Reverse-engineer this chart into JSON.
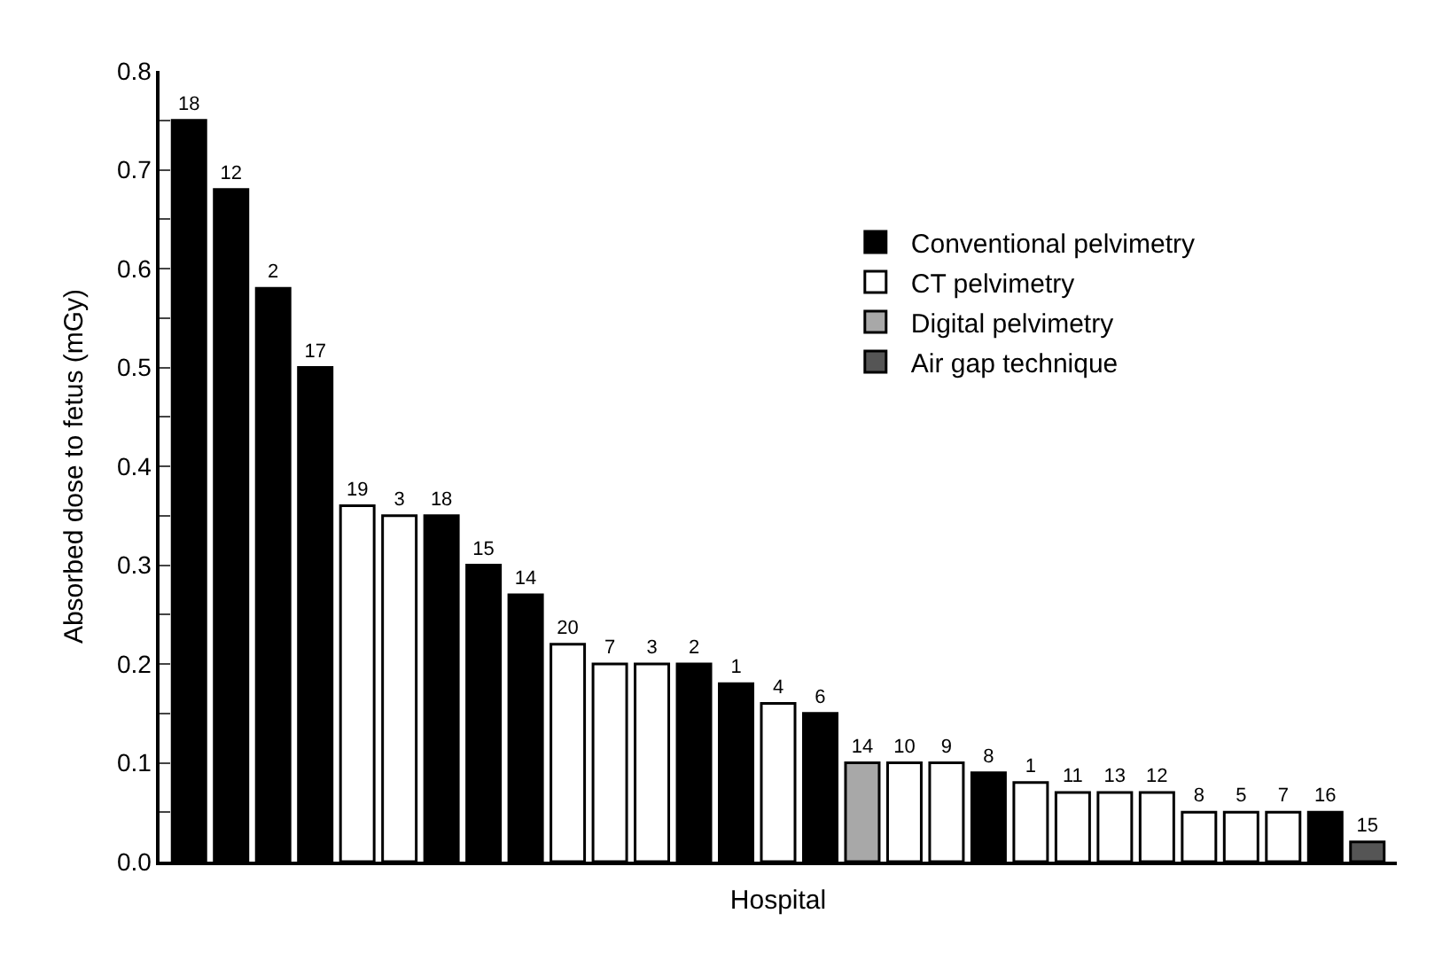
{
  "chart_data": {
    "type": "bar",
    "xlabel": "Hospital",
    "ylabel": "Absorbed dose to fetus (mGy)",
    "categories": [
      "18",
      "12",
      "2",
      "17",
      "19",
      "3",
      "18",
      "15",
      "14",
      "20",
      "7",
      "3",
      "2",
      "1",
      "4",
      "6",
      "14",
      "10",
      "9",
      "8",
      "1",
      "11",
      "13",
      "12",
      "8",
      "5",
      "7",
      "16",
      "15"
    ],
    "series": [
      {
        "name": "Conventional pelvimetry",
        "color": "#000000",
        "values": [
          0.75,
          0.68,
          0.58,
          0.5,
          null,
          null,
          0.35,
          0.3,
          0.27,
          null,
          null,
          null,
          0.2,
          0.18,
          null,
          0.15,
          null,
          null,
          null,
          0.09,
          null,
          null,
          null,
          null,
          null,
          null,
          null,
          0.05,
          null
        ]
      },
      {
        "name": "CT pelvimetry",
        "color": "#ffffff",
        "values": [
          null,
          null,
          null,
          null,
          0.36,
          0.35,
          null,
          null,
          null,
          0.22,
          0.2,
          0.2,
          null,
          null,
          0.16,
          null,
          null,
          0.1,
          0.1,
          null,
          0.08,
          0.07,
          0.07,
          0.07,
          0.05,
          0.05,
          0.05,
          null,
          null
        ]
      },
      {
        "name": "Digital pelvimetry",
        "color": "#a8a8a8",
        "values": [
          null,
          null,
          null,
          null,
          null,
          null,
          null,
          null,
          null,
          null,
          null,
          null,
          null,
          null,
          null,
          null,
          0.1,
          null,
          null,
          null,
          null,
          null,
          null,
          null,
          null,
          null,
          null,
          null,
          null
        ]
      },
      {
        "name": "Air gap technique",
        "color": "#555555",
        "values": [
          null,
          null,
          null,
          null,
          null,
          null,
          null,
          null,
          null,
          null,
          null,
          null,
          null,
          null,
          null,
          null,
          null,
          null,
          null,
          null,
          null,
          null,
          null,
          null,
          null,
          null,
          null,
          null,
          0.02
        ]
      }
    ],
    "ylim": [
      0,
      0.8
    ],
    "yticks": [
      {
        "value": 0,
        "label": "0.0"
      },
      {
        "value": 0.05,
        "label": null
      },
      {
        "value": 0.1,
        "label": "0.1"
      },
      {
        "value": 0.15,
        "label": null
      },
      {
        "value": 0.2,
        "label": "0.2"
      },
      {
        "value": 0.25,
        "label": null
      },
      {
        "value": 0.3,
        "label": "0.3"
      },
      {
        "value": 0.35,
        "label": null
      },
      {
        "value": 0.4,
        "label": "0.4"
      },
      {
        "value": 0.45,
        "label": null
      },
      {
        "value": 0.5,
        "label": "0.5"
      },
      {
        "value": 0.55,
        "label": null
      },
      {
        "value": 0.6,
        "label": "0.6"
      },
      {
        "value": 0.65,
        "label": null
      },
      {
        "value": 0.7,
        "label": "0.7"
      },
      {
        "value": 0.75,
        "label": null
      },
      {
        "value": 0.8,
        "label": "0.8"
      }
    ],
    "tick_labels": "y",
    "legend": "top right"
  }
}
